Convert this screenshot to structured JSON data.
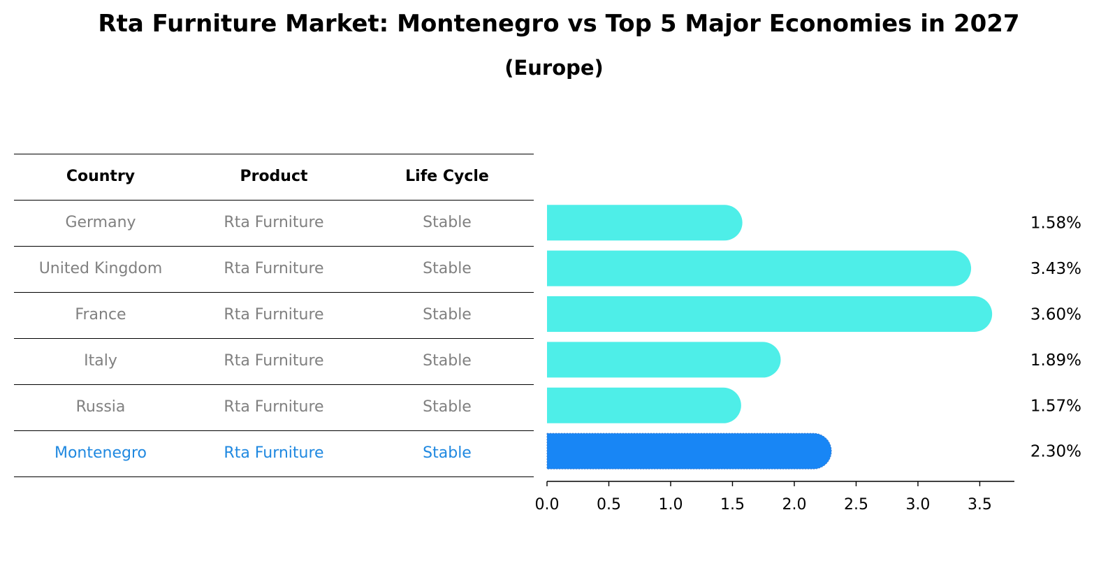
{
  "title": "Rta Furniture Market: Montenegro vs Top 5 Major Economies in 2027",
  "subtitle": "(Europe)",
  "table": {
    "headers": [
      "Country",
      "Product",
      "Life Cycle"
    ],
    "rows": [
      {
        "country": "Germany",
        "product": "Rta Furniture",
        "life_cycle": "Stable"
      },
      {
        "country": "United Kingdom",
        "product": "Rta Furniture",
        "life_cycle": "Stable"
      },
      {
        "country": "France",
        "product": "Rta Furniture",
        "life_cycle": "Stable"
      },
      {
        "country": "Italy",
        "product": "Rta Furniture",
        "life_cycle": "Stable"
      },
      {
        "country": "Russia",
        "product": "Rta Furniture",
        "life_cycle": "Stable"
      },
      {
        "country": "Montenegro",
        "product": "Rta Furniture",
        "life_cycle": "Stable"
      }
    ],
    "highlight_row": 5
  },
  "chart_data": {
    "type": "bar",
    "orientation": "horizontal",
    "categories": [
      "Germany",
      "United Kingdom",
      "France",
      "Italy",
      "Russia",
      "Montenegro"
    ],
    "values": [
      1.58,
      3.43,
      3.6,
      1.89,
      1.57,
      2.3
    ],
    "data_labels": [
      "1.58%",
      "3.43%",
      "3.60%",
      "1.89%",
      "1.57%",
      "2.30%"
    ],
    "xlim": [
      0,
      3.78
    ],
    "xticks": [
      0.0,
      0.5,
      1.0,
      1.5,
      2.0,
      2.5,
      3.0,
      3.5
    ],
    "xtick_labels": [
      "0.0",
      "0.5",
      "1.0",
      "1.5",
      "2.0",
      "2.5",
      "3.0",
      "3.5"
    ],
    "grid": false,
    "colors": {
      "default": "#4eeee8",
      "highlight": "#1886f5"
    },
    "highlight_index": 5
  }
}
